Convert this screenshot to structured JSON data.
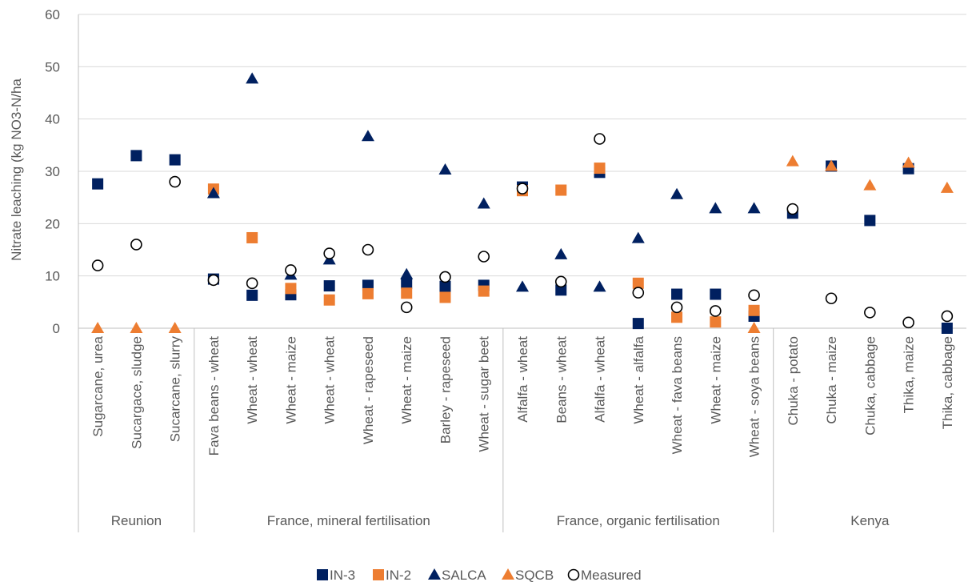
{
  "chart_data": {
    "type": "scatter",
    "ylabel": "Nitrate leaching (kg NO3-N/ha",
    "ylim": [
      0,
      60
    ],
    "yticks": [
      0,
      10,
      20,
      30,
      40,
      50,
      60
    ],
    "grid": "horizontal",
    "legend_position": "bottom",
    "categories": [
      "Sugarcane, urea",
      "Sucargace, sludge",
      "Sucarcane, slurry",
      "Fava beans - wheat",
      "Wheat - wheat",
      "Wheat - maize",
      "Wheat - wheat",
      "Wheat - rapeseed",
      "Wheat - maize",
      "Barley - rapeseed",
      "Wheat - sugar beet",
      "Alfalfa - wheat",
      "Beans - wheat",
      "Alfalfa - wheat",
      "Wheat - alfalfa",
      "Wheat - fava beans",
      "Wheat - maize",
      "Wheat - soya beans",
      "Chuka - potato",
      "Chuka - maize",
      "Chuka, cabbage",
      "Thika, maize",
      "Thika, cabbage"
    ],
    "groups": [
      {
        "label": "Reunion",
        "start": 0,
        "end": 2
      },
      {
        "label": "France, mineral fertilisation",
        "start": 3,
        "end": 10
      },
      {
        "label": "France, organic fertilisation",
        "start": 11,
        "end": 17
      },
      {
        "label": "Kenya",
        "start": 18,
        "end": 22
      }
    ],
    "series": [
      {
        "name": "IN-3",
        "marker": "square",
        "color": "#002060",
        "values": [
          27.6,
          33,
          32.2,
          9.4,
          6.3,
          6.4,
          8.1,
          8.2,
          8.6,
          8.0,
          8.2,
          27.0,
          7.3,
          29.8,
          0.9,
          6.5,
          6.5,
          2.3,
          22.0,
          31.0,
          20.6,
          30.5,
          0.0
        ]
      },
      {
        "name": "IN-2",
        "marker": "square",
        "color": "#ED7D31",
        "values": [
          null,
          null,
          null,
          26.6,
          17.3,
          7.6,
          5.4,
          6.6,
          6.7,
          5.9,
          7.1,
          26.3,
          26.4,
          30.6,
          8.6,
          2.1,
          1.2,
          3.4,
          null,
          null,
          null,
          null,
          null
        ]
      },
      {
        "name": "SALCA",
        "marker": "triangle",
        "color": "#002060",
        "values": [
          null,
          null,
          null,
          25.8,
          47.7,
          10.2,
          13.1,
          36.7,
          10.3,
          30.3,
          23.8,
          7.9,
          14.1,
          7.9,
          17.2,
          25.6,
          22.9,
          22.9,
          null,
          null,
          null,
          null,
          null
        ]
      },
      {
        "name": "SQCB",
        "marker": "triangle",
        "color": "#ED7D31",
        "values": [
          0,
          0,
          0,
          null,
          null,
          null,
          null,
          null,
          null,
          null,
          null,
          null,
          null,
          null,
          null,
          null,
          null,
          0,
          31.9,
          31.0,
          27.3,
          31.6,
          26.8
        ]
      },
      {
        "name": "Measured",
        "marker": "circle-open",
        "color": "#000000",
        "values": [
          12.0,
          16.0,
          28.0,
          9.2,
          8.6,
          11.1,
          14.3,
          15.0,
          4.0,
          9.8,
          13.7,
          26.7,
          8.9,
          36.2,
          6.8,
          4.0,
          3.3,
          6.3,
          22.8,
          5.7,
          3.0,
          1.1,
          2.3
        ]
      }
    ]
  }
}
